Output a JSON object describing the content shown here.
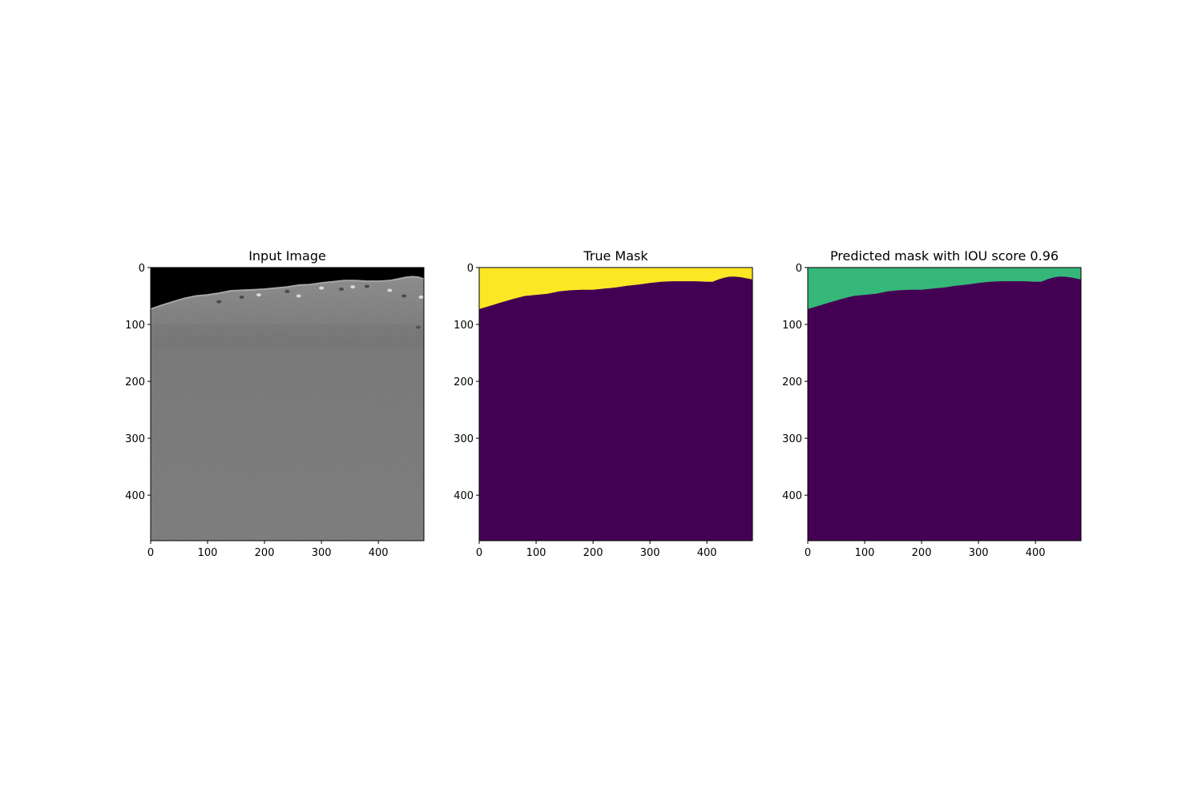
{
  "chart_data": [
    {
      "type": "heatmap",
      "title": "Input Image",
      "xlabel": "",
      "ylabel": "",
      "xlim": [
        0,
        480
      ],
      "ylim": [
        480,
        0
      ],
      "x_ticks": [
        0,
        100,
        200,
        300,
        400
      ],
      "y_ticks": [
        0,
        100,
        200,
        300,
        400
      ],
      "colormap": "gray",
      "horizon_profile": {
        "x": [
          0,
          20,
          40,
          60,
          80,
          100,
          120,
          140,
          160,
          180,
          200,
          220,
          240,
          260,
          280,
          300,
          320,
          340,
          360,
          380,
          400,
          420,
          440,
          450,
          460,
          470,
          480
        ],
        "y": [
          73,
          66,
          60,
          54,
          50,
          48,
          45,
          41,
          40,
          39,
          38,
          36,
          34,
          31,
          30,
          27,
          25,
          23,
          23,
          24,
          24,
          23,
          19,
          17,
          16,
          17,
          20
        ]
      },
      "colors": {
        "sky": "#000000",
        "ground": "#8c8c8c",
        "ground_dark": "#6f6f6f",
        "ground_light": "#a6a6a6"
      }
    },
    {
      "type": "heatmap",
      "title": "True Mask",
      "xlabel": "",
      "ylabel": "",
      "xlim": [
        0,
        480
      ],
      "ylim": [
        480,
        0
      ],
      "x_ticks": [
        0,
        100,
        200,
        300,
        400
      ],
      "y_ticks": [
        0,
        100,
        200,
        300,
        400
      ],
      "colormap": "viridis",
      "classes": [
        {
          "value": 1,
          "color": "#fde725",
          "region": "sky"
        },
        {
          "value": 0,
          "color": "#440154",
          "region": "ground"
        }
      ],
      "boundary": {
        "x": [
          0,
          20,
          40,
          60,
          80,
          100,
          120,
          140,
          160,
          180,
          200,
          220,
          240,
          260,
          280,
          300,
          320,
          340,
          360,
          380,
          400,
          410,
          420,
          430,
          440,
          450,
          460,
          470,
          480
        ],
        "y": [
          73,
          67,
          61,
          55,
          50,
          48,
          46,
          42,
          40,
          39,
          39,
          37,
          35,
          32,
          30,
          27,
          25,
          24,
          24,
          24,
          25,
          25,
          21,
          18,
          16,
          16,
          17,
          19,
          21
        ]
      }
    },
    {
      "type": "heatmap",
      "title": "Predicted mask with IOU score 0.96",
      "xlabel": "",
      "ylabel": "",
      "xlim": [
        0,
        480
      ],
      "ylim": [
        480,
        0
      ],
      "x_ticks": [
        0,
        100,
        200,
        300,
        400
      ],
      "y_ticks": [
        0,
        100,
        200,
        300,
        400
      ],
      "colormap": "viridis",
      "classes": [
        {
          "value": 1,
          "color": "#35b779",
          "region": "sky"
        },
        {
          "value": 0,
          "color": "#440154",
          "region": "ground"
        }
      ],
      "boundary": {
        "x": [
          0,
          20,
          40,
          60,
          80,
          100,
          120,
          140,
          160,
          180,
          200,
          220,
          240,
          260,
          280,
          300,
          320,
          340,
          360,
          380,
          400,
          410,
          420,
          430,
          440,
          450,
          460,
          470,
          480
        ],
        "y": [
          73,
          67,
          61,
          55,
          50,
          48,
          46,
          42,
          40,
          39,
          39,
          37,
          35,
          32,
          30,
          27,
          25,
          24,
          24,
          24,
          25,
          25,
          21,
          18,
          16,
          16,
          17,
          19,
          21
        ]
      },
      "iou_score": 0.96
    }
  ]
}
